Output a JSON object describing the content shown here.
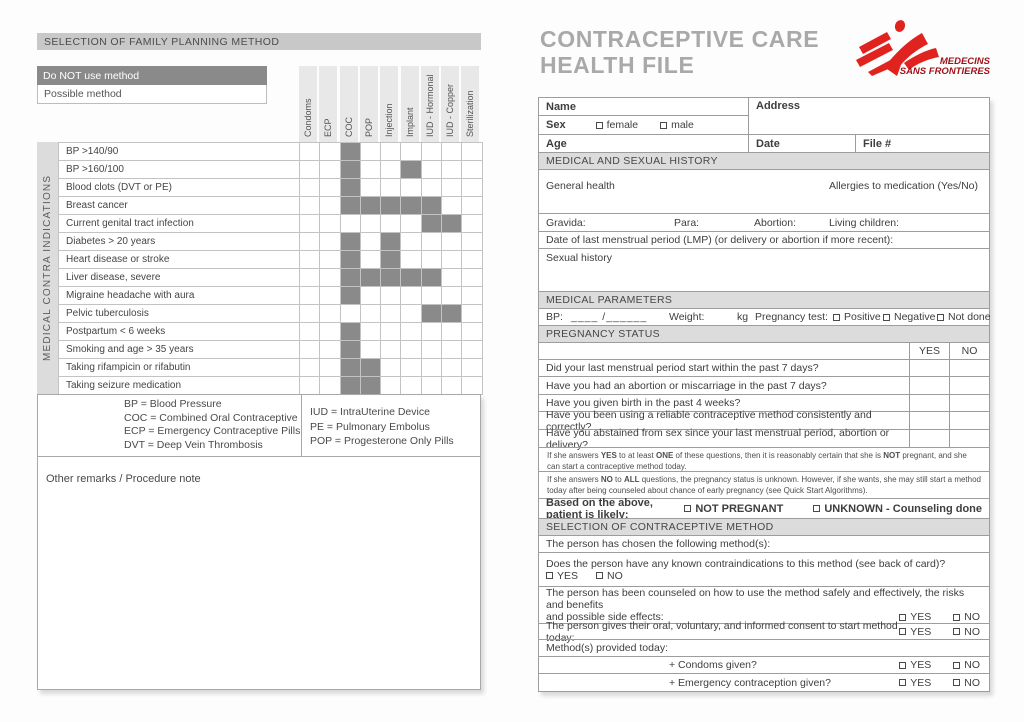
{
  "colors": {
    "msf_red": "#e0231f",
    "msf_text_red": "#9d1118",
    "title_gray": "#a9a9a9",
    "do_not_use_bar": "#8a8a8a",
    "section_header_bg": "#dcdcdc",
    "left_title_bar_bg": "#c8c8c8"
  },
  "left": {
    "title": "SELECTION OF FAMILY PLANNING METHOD",
    "legend_do_not": "Do NOT use method",
    "legend_possible": "Possible method",
    "sidebar_label": "MEDICAL CONTRA INDICATIONS",
    "columns": [
      "Condoms",
      "ECP",
      "COC",
      "POP",
      "Injection",
      "Implant",
      "IUD - Hormonal",
      "IUD - Copper",
      "Sterilization"
    ],
    "rows": [
      {
        "label": "BP >140/90",
        "do_not_use": [
          "COC"
        ]
      },
      {
        "label": "BP >160/100",
        "do_not_use": [
          "COC",
          "Implant"
        ]
      },
      {
        "label": "Blood clots (DVT or PE)",
        "do_not_use": [
          "COC"
        ]
      },
      {
        "label": "Breast cancer",
        "do_not_use": [
          "COC",
          "POP",
          "Injection",
          "Implant",
          "IUD - Hormonal"
        ]
      },
      {
        "label": "Current genital tract infection",
        "do_not_use": [
          "IUD - Hormonal",
          "IUD - Copper"
        ]
      },
      {
        "label": "Diabetes > 20 years",
        "do_not_use": [
          "COC",
          "Injection"
        ]
      },
      {
        "label": "Heart disease or stroke",
        "do_not_use": [
          "COC",
          "Injection"
        ]
      },
      {
        "label": "Liver disease, severe",
        "do_not_use": [
          "COC",
          "POP",
          "Injection",
          "Implant",
          "IUD - Hormonal"
        ]
      },
      {
        "label": "Migraine headache with aura",
        "do_not_use": [
          "COC"
        ]
      },
      {
        "label": "Pelvic tuberculosis",
        "do_not_use": [
          "IUD - Hormonal",
          "IUD - Copper"
        ]
      },
      {
        "label": "Postpartum < 6 weeks",
        "do_not_use": [
          "COC"
        ]
      },
      {
        "label": "Smoking and age > 35 years",
        "do_not_use": [
          "COC"
        ]
      },
      {
        "label": "Taking rifampicin or rifabutin",
        "do_not_use": [
          "COC",
          "POP"
        ]
      },
      {
        "label": "Taking seizure medication",
        "do_not_use": [
          "COC",
          "POP"
        ]
      }
    ],
    "abbreviations_left": [
      "BP = Blood Pressure",
      "COC = Combined Oral Contraceptive",
      "ECP = Emergency Contraceptive Pills",
      "DVT = Deep Vein Thrombosis"
    ],
    "abbreviations_right": [
      "IUD = IntraUterine Device",
      "PE = Pulmonary Embolus",
      "POP = Progesterone Only Pills"
    ],
    "remarks_label": "Other remarks / Procedure note"
  },
  "right": {
    "title_line1": "CONTRACEPTIVE CARE",
    "title_line2": "HEALTH FILE",
    "logo_line1": "MEDECINS",
    "logo_line2": "SANS FRONTIERES",
    "identity": {
      "name": "Name",
      "address": "Address",
      "sex": "Sex",
      "female": "female",
      "male": "male",
      "age": "Age",
      "date": "Date",
      "file": "File #"
    },
    "history": {
      "header": "MEDICAL AND SEXUAL HISTORY",
      "general_health": "General health",
      "allergies": "Allergies to medication (Yes/No)",
      "gravida": "Gravida:",
      "para": "Para:",
      "abortion": "Abortion:",
      "living_children": "Living children:",
      "lmp": "Date of last menstrual period (LMP) (or delivery or abortion if more recent):",
      "sexual_history": "Sexual history"
    },
    "parameters": {
      "header": "MEDICAL PARAMETERS",
      "bp": "BP:",
      "bp_blank": "____ /______",
      "weight": "Weight:",
      "kg": "kg",
      "pregnancy_test": "Pregnancy test:",
      "positive": "Positive",
      "negative": "Negative",
      "not_done": "Not done"
    },
    "pregnancy": {
      "header": "PREGNANCY STATUS",
      "yes": "YES",
      "no": "NO",
      "questions": [
        "Did your last menstrual period start within the past 7 days?",
        "Have you had an abortion or miscarriage in the past 7 days?",
        "Have you given birth in the past 4 weeks?",
        "Have you been using a reliable contraceptive method consistently and correctly?",
        "Have you abstained from sex since your last menstrual period, abortion or delivery?"
      ],
      "note1_segments": [
        {
          "t": "If she answers "
        },
        {
          "t": "YES",
          "b": true
        },
        {
          "t": " to at least "
        },
        {
          "t": "ONE",
          "b": true
        },
        {
          "t": " of these questions, then it is reasonably certain that she is "
        },
        {
          "t": "NOT",
          "b": true
        },
        {
          "t": " pregnant, and she can start a contraceptive method today."
        }
      ],
      "note2_segments": [
        {
          "t": "If she answers "
        },
        {
          "t": "NO",
          "b": true
        },
        {
          "t": " to "
        },
        {
          "t": "ALL",
          "b": true
        },
        {
          "t": " questions, the pregnancy status is unknown. However, if she wants, she may still start a method today after being counseled about chance of early pregnancy (see Quick Start Algorithms)."
        }
      ],
      "based_label": "Based on the above, patient is likely:",
      "option_not_pregnant": "NOT PREGNANT",
      "option_unknown": "UNKNOWN - Counseling done"
    },
    "selection": {
      "header": "SELECTION OF CONTRACEPTIVE METHOD",
      "chosen": "The person has chosen the following method(s):",
      "contraindications_q": "Does the person have any known contraindications to this method (see back of card)?",
      "yes": "YES",
      "no": "NO",
      "counseled_line1": "The person has been counseled on how to use the method safely and effectively, the risks and benefits",
      "counseled_line2": "and possible side effects:",
      "consent": "The person gives their oral, voluntary, and informed consent to start method today:",
      "provided": "Method(s) provided today:",
      "provided_items": [
        "+ Condoms given?",
        "+ Emergency contraception given?"
      ]
    }
  }
}
